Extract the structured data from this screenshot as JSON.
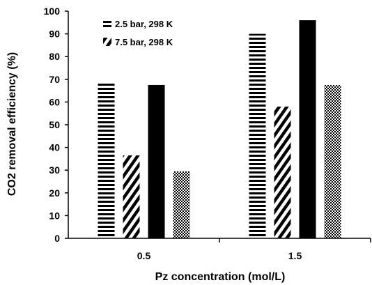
{
  "chart_data": {
    "type": "bar",
    "title": "",
    "xlabel": "Pz concentration (mol/L)",
    "ylabel": "CO2 removal efficiency (%)",
    "ylim": [
      0,
      100
    ],
    "yticks": [
      0,
      10,
      20,
      30,
      40,
      50,
      60,
      70,
      80,
      90,
      100
    ],
    "categories": [
      "0.5",
      "1.5"
    ],
    "grid": false,
    "legend_position": "top-left",
    "series": [
      {
        "name": "2.5 bar, 298 K",
        "pattern": "horizontal-stripes",
        "values": [
          68.5,
          90
        ]
      },
      {
        "name": "7.5 bar, 298 K",
        "pattern": "diagonal-stripes",
        "values": [
          36.5,
          58
        ]
      },
      {
        "name": "",
        "pattern": "solid-black",
        "values": [
          67.5,
          96
        ]
      },
      {
        "name": "",
        "pattern": "checker",
        "values": [
          29.5,
          67.5
        ]
      }
    ]
  }
}
